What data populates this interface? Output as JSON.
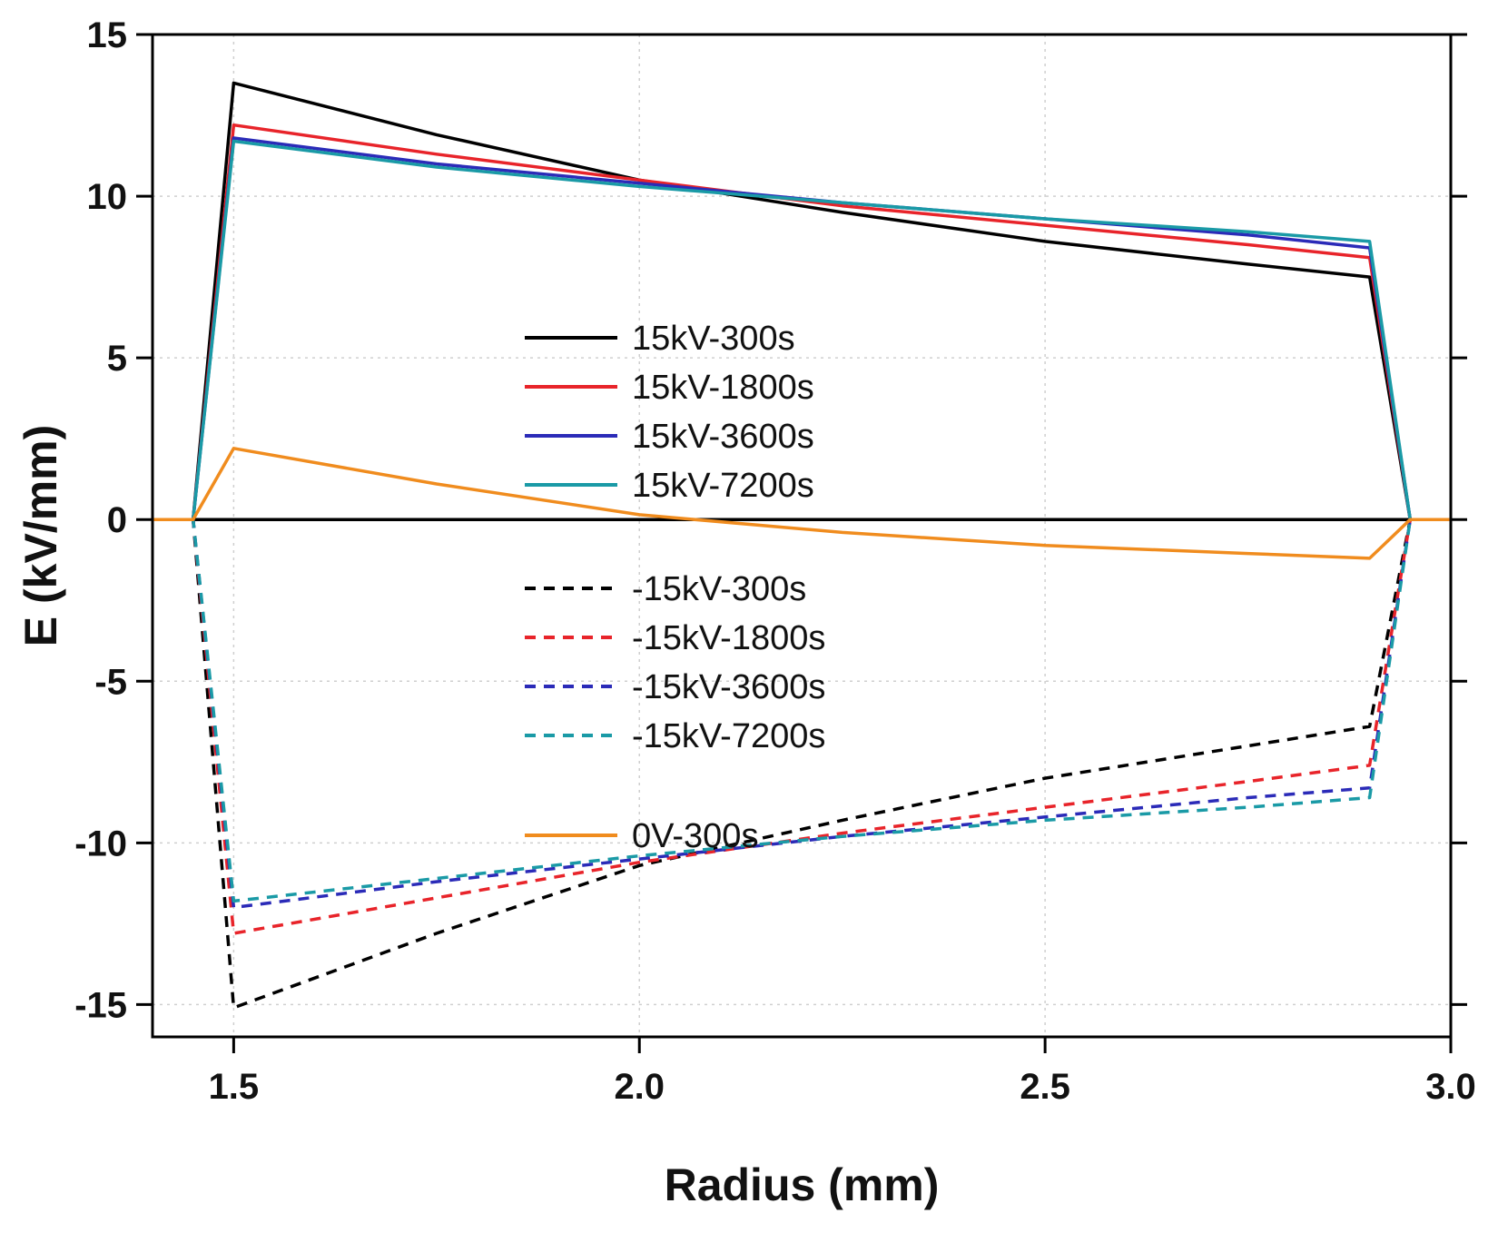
{
  "chart_data": {
    "type": "line",
    "title": "",
    "xlabel": "Radius (mm)",
    "ylabel": "E (kV/mm)",
    "xlim": [
      1.4,
      3.0
    ],
    "ylim": [
      -16,
      15
    ],
    "xticks": [
      1.5,
      2.0,
      2.5,
      3.0
    ],
    "xtick_labels": [
      "1.5",
      "2.0",
      "2.5",
      "3.0"
    ],
    "yticks": [
      -15,
      -10,
      -5,
      0,
      5,
      10,
      15
    ],
    "ytick_labels": [
      "-15",
      "-10",
      "-5",
      "0",
      "5",
      "10",
      "15"
    ],
    "zero_line": true,
    "legend_position": "center",
    "series": [
      {
        "name": "15kV-300s",
        "color": "#000000",
        "dash": "solid",
        "x": [
          1.4,
          1.45,
          1.5,
          1.75,
          2.0,
          2.25,
          2.5,
          2.75,
          2.9,
          2.95,
          3.0
        ],
        "y": [
          0,
          0,
          13.5,
          11.9,
          10.5,
          9.5,
          8.6,
          7.9,
          7.5,
          0,
          0
        ]
      },
      {
        "name": "15kV-1800s",
        "color": "#e8242a",
        "dash": "solid",
        "x": [
          1.4,
          1.45,
          1.5,
          1.75,
          2.0,
          2.25,
          2.5,
          2.75,
          2.9,
          2.95,
          3.0
        ],
        "y": [
          0,
          0,
          12.2,
          11.3,
          10.5,
          9.7,
          9.1,
          8.5,
          8.1,
          0,
          0
        ]
      },
      {
        "name": "15kV-3600s",
        "color": "#2b2bb8",
        "dash": "solid",
        "x": [
          1.4,
          1.45,
          1.5,
          1.75,
          2.0,
          2.25,
          2.5,
          2.75,
          2.9,
          2.95,
          3.0
        ],
        "y": [
          0,
          0,
          11.8,
          11.0,
          10.4,
          9.8,
          9.3,
          8.8,
          8.4,
          0,
          0
        ]
      },
      {
        "name": "15kV-7200s",
        "color": "#1a9aa6",
        "dash": "solid",
        "x": [
          1.4,
          1.45,
          1.5,
          1.75,
          2.0,
          2.25,
          2.5,
          2.75,
          2.9,
          2.95,
          3.0
        ],
        "y": [
          0,
          0,
          11.7,
          10.9,
          10.3,
          9.8,
          9.3,
          8.9,
          8.6,
          0,
          0
        ]
      },
      {
        "name": "-15kV-300s",
        "color": "#000000",
        "dash": "dashed",
        "x": [
          1.4,
          1.45,
          1.5,
          1.75,
          2.0,
          2.25,
          2.5,
          2.75,
          2.9,
          2.95,
          3.0
        ],
        "y": [
          0,
          0,
          -15.1,
          -12.8,
          -10.7,
          -9.3,
          -8.0,
          -7.0,
          -6.4,
          0,
          0
        ]
      },
      {
        "name": "-15kV-1800s",
        "color": "#e8242a",
        "dash": "dashed",
        "x": [
          1.4,
          1.45,
          1.5,
          1.75,
          2.0,
          2.25,
          2.5,
          2.75,
          2.9,
          2.95,
          3.0
        ],
        "y": [
          0,
          0,
          -12.8,
          -11.7,
          -10.6,
          -9.7,
          -8.9,
          -8.1,
          -7.6,
          0,
          0
        ]
      },
      {
        "name": "-15kV-3600s",
        "color": "#2b2bb8",
        "dash": "dashed",
        "x": [
          1.4,
          1.45,
          1.5,
          1.75,
          2.0,
          2.25,
          2.5,
          2.75,
          2.9,
          2.95,
          3.0
        ],
        "y": [
          0,
          0,
          -12.0,
          -11.2,
          -10.5,
          -9.8,
          -9.2,
          -8.6,
          -8.3,
          0,
          0
        ]
      },
      {
        "name": "-15kV-7200s",
        "color": "#1a9aa6",
        "dash": "dashed",
        "x": [
          1.4,
          1.45,
          1.5,
          1.75,
          2.0,
          2.25,
          2.5,
          2.75,
          2.9,
          2.95,
          3.0
        ],
        "y": [
          0,
          0,
          -11.8,
          -11.1,
          -10.4,
          -9.8,
          -9.3,
          -8.9,
          -8.6,
          0,
          0
        ]
      },
      {
        "name": "0V-300s",
        "color": "#f08c1e",
        "dash": "solid",
        "x": [
          1.4,
          1.45,
          1.5,
          1.75,
          2.0,
          2.25,
          2.5,
          2.75,
          2.9,
          2.95,
          3.0
        ],
        "y": [
          0,
          0,
          2.2,
          1.1,
          0.15,
          -0.4,
          -0.8,
          -1.05,
          -1.2,
          0,
          0
        ]
      }
    ]
  }
}
